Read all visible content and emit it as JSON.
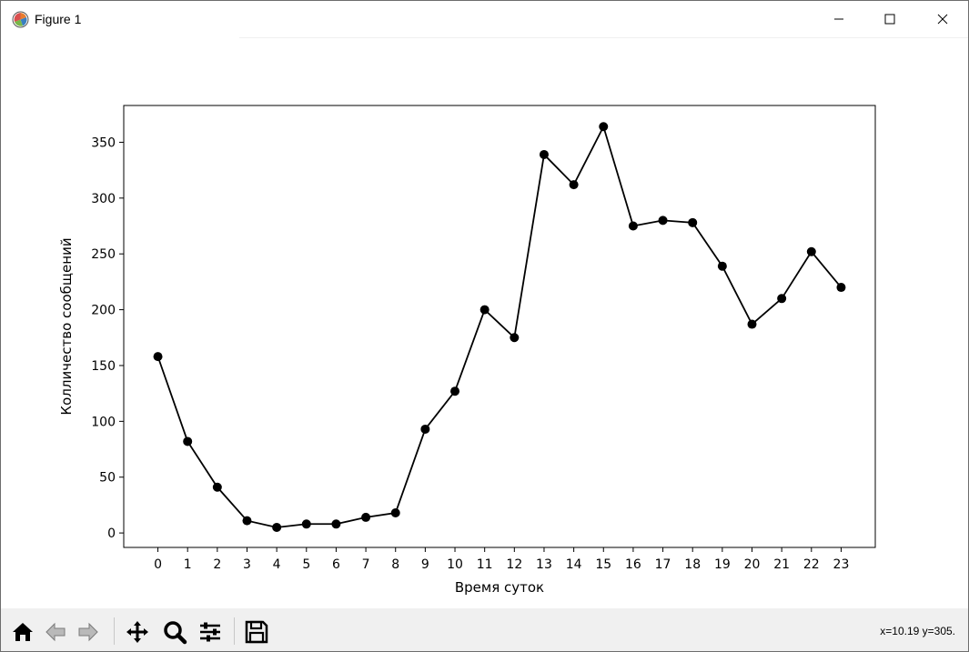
{
  "window": {
    "title": "Figure 1",
    "app_icon": "matplotlib-icon",
    "controls": [
      "minimize-icon",
      "maximize-icon",
      "close-icon"
    ]
  },
  "toolbar": {
    "buttons": [
      {
        "name": "home-icon"
      },
      {
        "name": "back-arrow-icon"
      },
      {
        "name": "forward-arrow-icon"
      },
      {
        "name": "pan-icon"
      },
      {
        "name": "zoom-icon"
      },
      {
        "name": "configure-subplots-icon"
      },
      {
        "name": "save-icon"
      }
    ],
    "coords": "x=10.19 y=305."
  },
  "chart_data": {
    "type": "line",
    "title": "",
    "xlabel": "Время суток",
    "ylabel": "Колличество сообщений",
    "x": [
      0,
      1,
      2,
      3,
      4,
      5,
      6,
      7,
      8,
      9,
      10,
      11,
      12,
      13,
      14,
      15,
      16,
      17,
      18,
      19,
      20,
      21,
      22,
      23
    ],
    "series": [
      {
        "values": [
          158,
          82,
          41,
          11,
          5,
          8,
          8,
          14,
          18,
          93,
          127,
          200,
          175,
          339,
          312,
          364,
          275,
          280,
          278,
          239,
          187,
          210,
          252,
          220
        ],
        "color": "#000000",
        "marker": "circle"
      }
    ],
    "xlim": [
      -1.15,
      24.15
    ],
    "ylim": [
      -12.95,
      382.95
    ],
    "xticks": [
      "0",
      "1",
      "2",
      "3",
      "4",
      "5",
      "6",
      "7",
      "8",
      "9",
      "10",
      "11",
      "12",
      "13",
      "14",
      "15",
      "16",
      "17",
      "18",
      "19",
      "20",
      "21",
      "22",
      "23"
    ],
    "yticks": [
      "0",
      "50",
      "100",
      "150",
      "200",
      "250",
      "300",
      "350"
    ],
    "grid": false
  }
}
